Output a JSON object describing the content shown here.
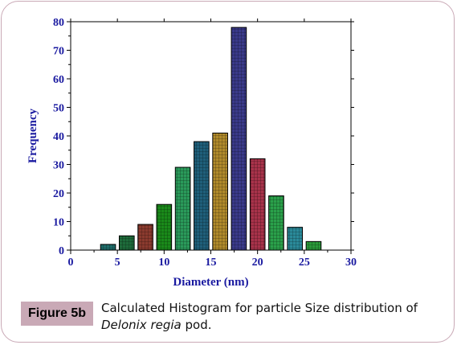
{
  "caption": {
    "label": "Figure 5b",
    "text_part1": "Calculated Histogram for particle  Size distribution of",
    "text_italic": "Delonix regia",
    "text_part2": " pod."
  },
  "chart_data": {
    "type": "bar",
    "xlabel": "Diameter (nm)",
    "ylabel": "Frequency",
    "xlim": [
      0,
      30
    ],
    "ylim": [
      0,
      80
    ],
    "x_ticks": [
      0,
      5,
      10,
      15,
      20,
      25,
      30
    ],
    "y_ticks": [
      0,
      10,
      20,
      30,
      40,
      50,
      60,
      70,
      80
    ],
    "bin_width": 1.6,
    "bars": [
      {
        "x": 4.0,
        "value": 2,
        "color": "#1f6d6a"
      },
      {
        "x": 6.0,
        "value": 5,
        "color": "#1e6b3a"
      },
      {
        "x": 8.0,
        "value": 9,
        "color": "#8b3a2e"
      },
      {
        "x": 10.0,
        "value": 16,
        "color": "#1a8a1a"
      },
      {
        "x": 12.0,
        "value": 29,
        "color": "#2a9a5a"
      },
      {
        "x": 14.0,
        "value": 38,
        "color": "#1f5f7a"
      },
      {
        "x": 16.0,
        "value": 41,
        "color": "#b08a2a"
      },
      {
        "x": 18.0,
        "value": 78,
        "color": "#3a3a8a"
      },
      {
        "x": 20.0,
        "value": 32,
        "color": "#a8324a"
      },
      {
        "x": 22.0,
        "value": 19,
        "color": "#2aa04a"
      },
      {
        "x": 24.0,
        "value": 8,
        "color": "#2a8a9a"
      },
      {
        "x": 26.0,
        "value": 3,
        "color": "#2a9a3a"
      }
    ],
    "axis_color": "#1a1aa0"
  }
}
